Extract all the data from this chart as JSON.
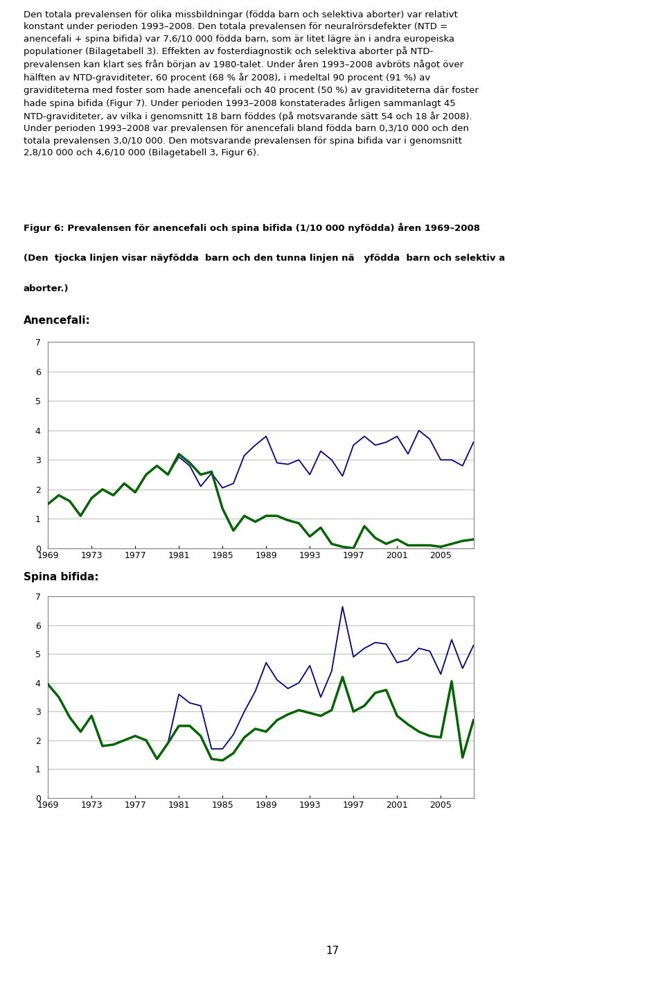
{
  "paragraph": "Den totala prevalensen för olika missbildningar (födda barn och selektiva aborter) var relativt konstant under perioden 1993–2008. Den totala prevalensen för neuralrörsdefekter (NTD = anencefali + spina bifida) var 7,6/10 000 födda barn, som är litet lägre än i andra europeiska populationer (Bilagetabell 3). Effekten av fosterdiagnostik och selektiva aborter på NTD-prevalensen kan klart ses från början av 1980-talet. Under åren 1993–2008 avbröts något över hälften av NTD-graviditeter, 60 procent (68 % år 2008), i medeltal 90 procent (91 %) av graviditeterna med foster som hade anencefali och 40 procent (50 %) av graviditeterna där foster hade spina bifida (Figur 7). Under perioden 1993–2008 konstaterades årligen sammanlagt 45 NTD-graviditeter, av vilka i genomsnitt 18 barn föddes (på motsvarande sätt 54 och 18 år 2008). Under perioden 1993–2008 var prevalensen för anencefali bland födda barn 0,3/10 000 och den totala prevalensen 3,0/10 000. Den motsvarande prevalensen för spina bifida var i genomsnitt 2,8/10 000 och 4,6/10 000 (Bilagetabell 3, Figur 6).",
  "cap_line1a": "Figur 6: Prevalensen för anencefali och spina bifida (1/10 000 nyfödda) åren 1969–20",
  "cap_line1b": "08",
  "cap_line2": "(Den  tjocka linjen visar näyfödda  barn och den tunna linjen nä   yfödda  barn och selektiv a",
  "cap_line3": "aborter.)",
  "label_anencefali": "Anencefali:",
  "label_spina": "Spina bifida:",
  "page_number": "17",
  "years": [
    1969,
    1970,
    1971,
    1972,
    1973,
    1974,
    1975,
    1976,
    1977,
    1978,
    1979,
    1980,
    1981,
    1982,
    1983,
    1984,
    1985,
    1986,
    1987,
    1988,
    1989,
    1990,
    1991,
    1992,
    1993,
    1994,
    1995,
    1996,
    1997,
    1998,
    1999,
    2000,
    2001,
    2002,
    2003,
    2004,
    2005,
    2006,
    2007,
    2008
  ],
  "anencefali_thick": [
    1.5,
    1.8,
    1.6,
    1.1,
    1.7,
    2.0,
    1.8,
    2.2,
    1.9,
    2.5,
    2.8,
    2.5,
    3.2,
    2.9,
    2.5,
    2.6,
    1.35,
    0.6,
    1.1,
    0.9,
    1.1,
    1.1,
    0.95,
    0.85,
    0.4,
    0.7,
    0.15,
    0.05,
    0.0,
    0.75,
    0.35,
    0.15,
    0.3,
    0.1,
    0.1,
    0.1,
    0.05,
    0.15,
    0.25,
    0.3
  ],
  "anencefali_thin": [
    1.5,
    1.8,
    1.6,
    1.1,
    1.7,
    2.0,
    1.8,
    2.2,
    1.9,
    2.5,
    2.8,
    2.5,
    3.1,
    2.8,
    2.1,
    2.55,
    2.05,
    2.2,
    3.15,
    3.5,
    3.8,
    2.9,
    2.85,
    3.0,
    2.5,
    3.3,
    3.0,
    2.45,
    3.5,
    3.8,
    3.5,
    3.6,
    3.8,
    3.2,
    4.0,
    3.7,
    3.0,
    3.0,
    2.8,
    3.6
  ],
  "spina_thick": [
    3.95,
    3.5,
    2.8,
    2.3,
    2.85,
    1.8,
    1.85,
    2.0,
    2.15,
    2.0,
    1.35,
    1.9,
    2.5,
    2.5,
    2.15,
    1.35,
    1.3,
    1.55,
    2.1,
    2.4,
    2.3,
    2.7,
    2.9,
    3.05,
    2.95,
    2.85,
    3.05,
    4.2,
    3.0,
    3.2,
    3.65,
    3.75,
    2.85,
    2.55,
    2.3,
    2.15,
    2.1,
    4.05,
    1.4,
    2.7
  ],
  "spina_thin": [
    3.95,
    3.5,
    2.8,
    2.3,
    2.85,
    1.8,
    1.85,
    2.0,
    2.15,
    2.0,
    1.35,
    1.9,
    3.6,
    3.3,
    3.2,
    1.7,
    1.7,
    2.2,
    3.0,
    3.7,
    4.7,
    4.1,
    3.8,
    4.0,
    4.6,
    3.5,
    4.4,
    6.65,
    4.9,
    5.2,
    5.4,
    5.35,
    4.7,
    4.8,
    5.2,
    5.1,
    4.3,
    5.5,
    4.5,
    5.3
  ],
  "thick_color": "#006400",
  "thin_color": "#00008B",
  "thick_linewidth": 2.5,
  "thin_linewidth": 1.3,
  "ylim": [
    0,
    7
  ],
  "yticks": [
    0,
    1,
    2,
    3,
    4,
    5,
    6,
    7
  ],
  "xtick_years": [
    1969,
    1973,
    1977,
    1981,
    1985,
    1989,
    1993,
    1997,
    2001,
    2005
  ],
  "figure_bg": "#ffffff",
  "chart_bg": "#ffffff",
  "grid_color": "#c0c0c0",
  "box_color": "#808080",
  "highlight_color": "#ffff00",
  "para_lines": [
    "Den totala prevalensen för olika missbildningar (födda barn och selektiva aborter) var relativt",
    "konstant under perioden 1993–2008. Den totala prevalensen för neuralrörsdefekter (NTD =",
    "anencefali + spina bifida) var 7,6/10 000 födda barn, som är litet lägre än i andra europeiska",
    "populationer (Bilagetabell 3). Effekten av fosterdiagnostik och selektiva aborter på NTD-",
    "prevalensen kan klart ses från början av 1980-talet. Under åren 1993–2008 avbröts något över",
    "hälften av NTD-graviditeter, 60 procent (68 % år 2008), i medeltal 90 procent (91 %) av",
    "graviditeterna med foster som hade anencefali och 40 procent (50 %) av graviditeterna där foster",
    "hade spina bifida (Figur 7). Under perioden 1993–2008 konstaterades årligen sammanlagt 45",
    "NTD-graviditeter, av vilka i genomsnitt 18 barn föddes (på motsvarande sätt 54 och 18 år 2008).",
    "Under perioden 1993–2008 var prevalensen för anencefali bland födda barn 0,3/10 000 och den",
    "totala prevalensen 3,0/10 000. Den motsvarande prevalensen för spina bifida var i genomsnitt",
    "2,8/10 000 och 4,6/10 000 (Bilagetabell 3, Figur 6)."
  ]
}
